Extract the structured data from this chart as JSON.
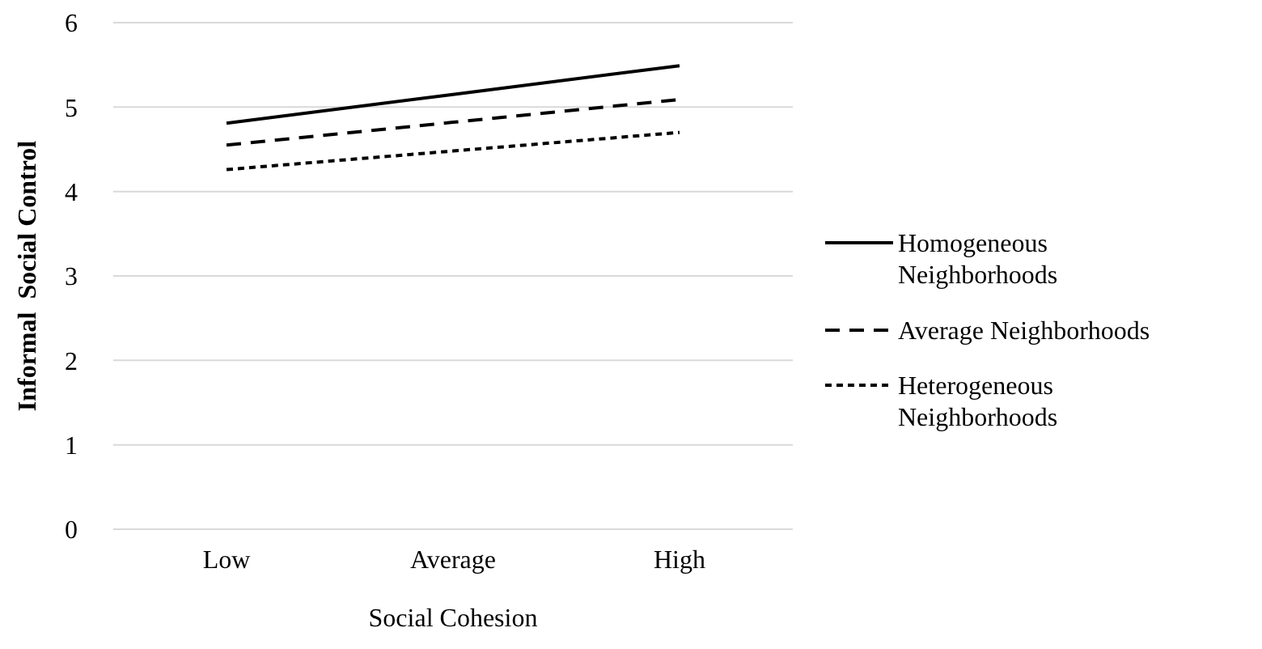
{
  "chart_data": {
    "type": "line",
    "xlabel": "Social Cohesion",
    "ylabel": "Informal  Social Control",
    "categories": [
      "Low",
      "Average",
      "High"
    ],
    "series": [
      {
        "name": "Homogeneous Neighborhoods",
        "color": "#000000",
        "line_style": "solid",
        "values": [
          4.81,
          5.15,
          5.49
        ]
      },
      {
        "name": "Average Neighborhoods",
        "color": "#000000",
        "line_style": "dashed",
        "values": [
          4.55,
          4.82,
          5.09
        ]
      },
      {
        "name": "Heterogeneous Neighborhoods",
        "color": "#000000",
        "line_style": "dotted",
        "values": [
          4.26,
          4.48,
          4.7
        ]
      }
    ],
    "ylim": [
      0,
      6
    ],
    "yticks": [
      0,
      1,
      2,
      3,
      4,
      5,
      6
    ],
    "grid": "y",
    "legend": "right",
    "marker": "none"
  }
}
